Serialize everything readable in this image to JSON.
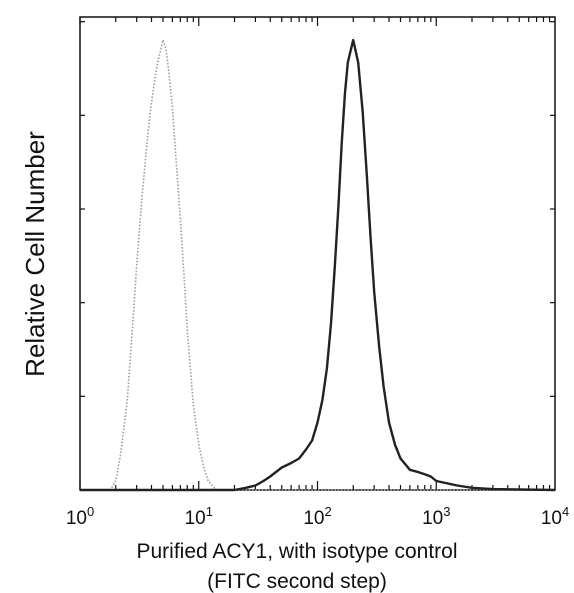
{
  "chart_data": {
    "type": "line",
    "title": "",
    "xlabel": "Purified ACY1, with isotype control",
    "xlabel_line2": "(FITC second step)",
    "ylabel": "Relative Cell Number",
    "xscale": "log",
    "xlim": [
      1,
      10000
    ],
    "ylim": [
      0,
      1
    ],
    "grid": false,
    "legend": "none",
    "x_ticks": [
      {
        "base": "10",
        "exp": "0",
        "value": 1
      },
      {
        "base": "10",
        "exp": "1",
        "value": 10
      },
      {
        "base": "10",
        "exp": "2",
        "value": 100
      },
      {
        "base": "10",
        "exp": "3",
        "value": 1000
      },
      {
        "base": "10",
        "exp": "4",
        "value": 10000
      }
    ],
    "series": [
      {
        "style": "dotted",
        "color": "#9a9a9a",
        "x": [
          1,
          1.8,
          2.0,
          2.2,
          2.5,
          2.8,
          3.0,
          3.3,
          3.6,
          3.9,
          4.2,
          4.5,
          4.8,
          5.0,
          5.3,
          5.6,
          6.0,
          6.5,
          7.0,
          7.5,
          8.0,
          8.5,
          9.0,
          10.0,
          11.0,
          12.0,
          13.0,
          14.0,
          20,
          10000
        ],
        "y": [
          0,
          0,
          0.02,
          0.08,
          0.2,
          0.38,
          0.5,
          0.64,
          0.75,
          0.84,
          0.9,
          0.95,
          0.98,
          1.0,
          0.98,
          0.93,
          0.85,
          0.72,
          0.6,
          0.48,
          0.36,
          0.27,
          0.19,
          0.1,
          0.05,
          0.02,
          0.01,
          0,
          0,
          0
        ]
      },
      {
        "style": "solid",
        "color": "#222222",
        "x": [
          1,
          10,
          20,
          25,
          30,
          35,
          40,
          50,
          60,
          70,
          80,
          90,
          100,
          110,
          120,
          130,
          140,
          150,
          160,
          170,
          180,
          200,
          220,
          240,
          260,
          280,
          300,
          330,
          360,
          400,
          450,
          500,
          600,
          700,
          800,
          900,
          1000,
          1500,
          2000,
          3000,
          10000
        ],
        "y": [
          0,
          0,
          0,
          0.005,
          0.01,
          0.02,
          0.03,
          0.05,
          0.06,
          0.07,
          0.09,
          0.11,
          0.15,
          0.2,
          0.27,
          0.37,
          0.5,
          0.63,
          0.77,
          0.88,
          0.95,
          1.0,
          0.95,
          0.84,
          0.7,
          0.56,
          0.44,
          0.32,
          0.23,
          0.15,
          0.1,
          0.07,
          0.045,
          0.04,
          0.035,
          0.03,
          0.02,
          0.01,
          0.005,
          0.002,
          0
        ]
      }
    ]
  }
}
